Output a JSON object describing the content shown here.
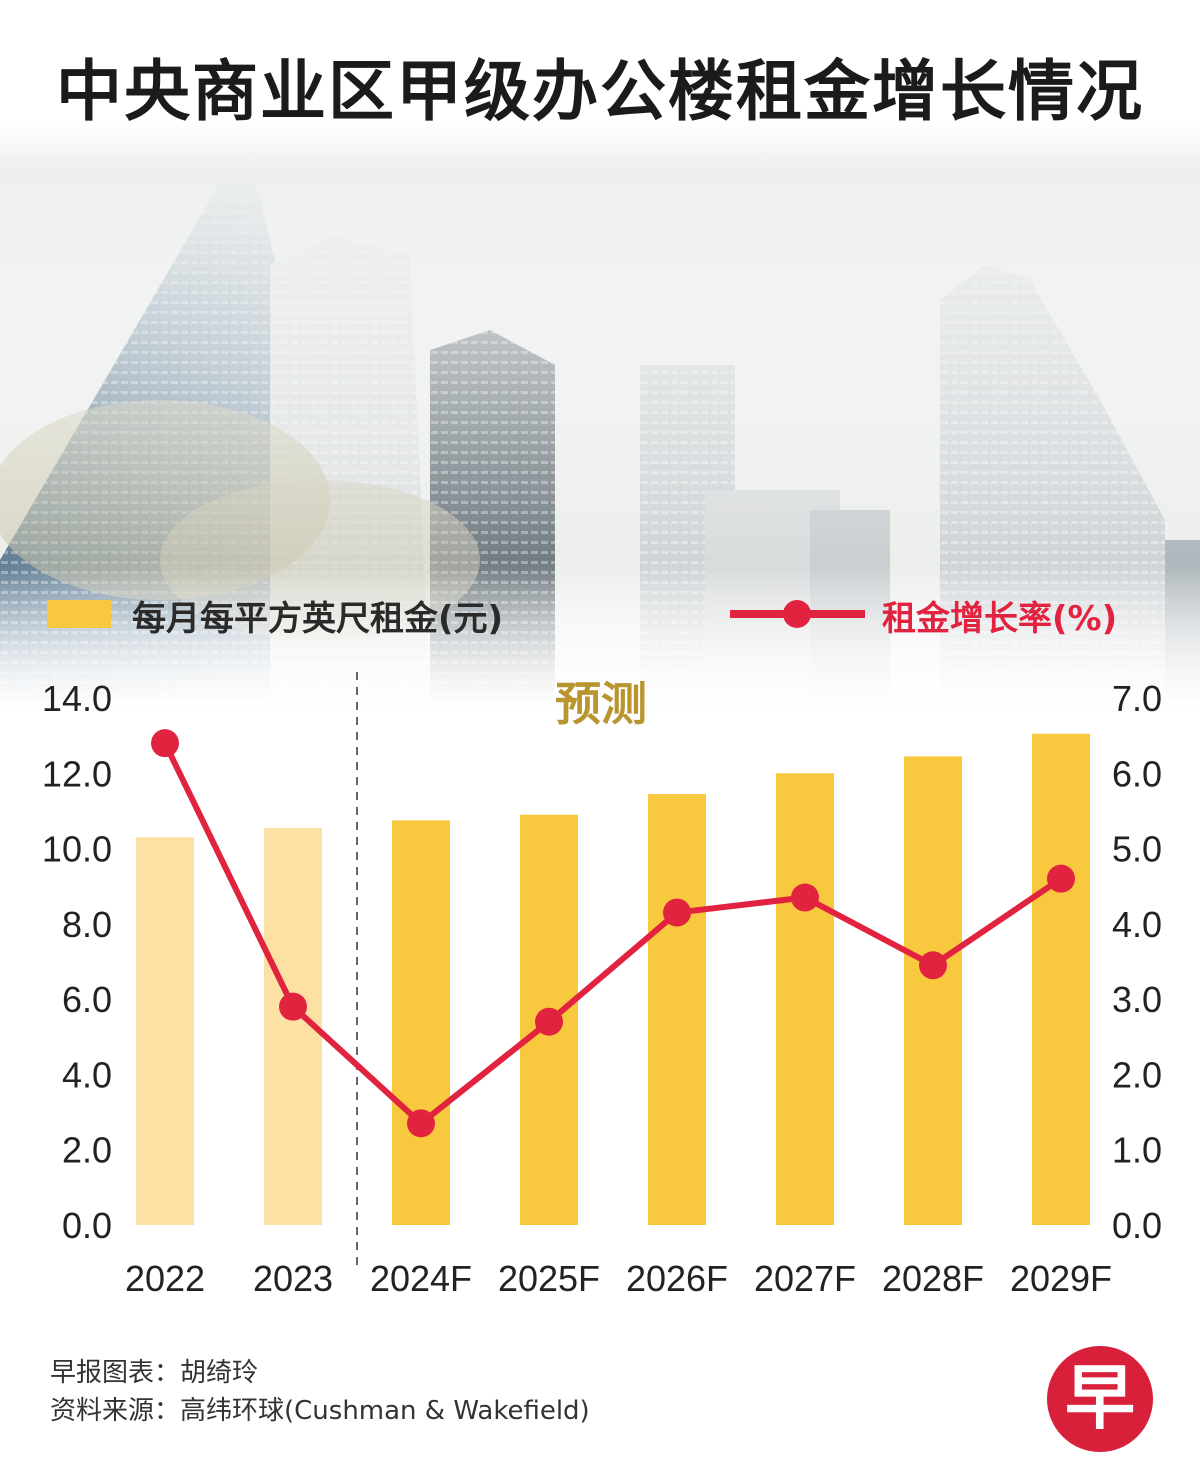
{
  "title": "中央商业区甲级办公楼租金增长情况",
  "legend": {
    "bar_label": "每月每平方英尺租金(元)",
    "line_label": "租金增长率(%)"
  },
  "forecast_label": "预测",
  "credits": {
    "line1": "早报图表：胡绮玲",
    "line2": "资料来源：高纬环球(Cushman & Wakefield)"
  },
  "logo_text": "早",
  "colors": {
    "bar_actual": "#fde0a3",
    "bar_forecast": "#f8c93f",
    "line": "#e2233f",
    "forecast_label": "#b8952f"
  },
  "chart_data": {
    "type": "bar+line",
    "categories": [
      "2022",
      "2023",
      "2024F",
      "2025F",
      "2026F",
      "2027F",
      "2028F",
      "2029F"
    ],
    "series": [
      {
        "name": "每月每平方英尺租金(元)",
        "type": "bar",
        "axis": "left",
        "values": [
          10.3,
          10.55,
          10.75,
          10.9,
          11.45,
          12.0,
          12.45,
          13.05
        ]
      },
      {
        "name": "租金增长率(%)",
        "type": "line",
        "axis": "right",
        "values": [
          6.4,
          2.9,
          1.35,
          2.7,
          4.15,
          4.35,
          3.45,
          4.6
        ]
      }
    ],
    "forecast_start_index": 2,
    "y_left": {
      "lim": [
        0,
        14
      ],
      "ticks": [
        "0.0",
        "2.0",
        "4.0",
        "6.0",
        "8.0",
        "10.0",
        "12.0",
        "14.0"
      ]
    },
    "y_right": {
      "lim": [
        0,
        7
      ],
      "ticks": [
        "0.0",
        "1.0",
        "2.0",
        "3.0",
        "4.0",
        "5.0",
        "6.0",
        "7.0"
      ]
    },
    "grid": false,
    "legend_position": "top"
  }
}
